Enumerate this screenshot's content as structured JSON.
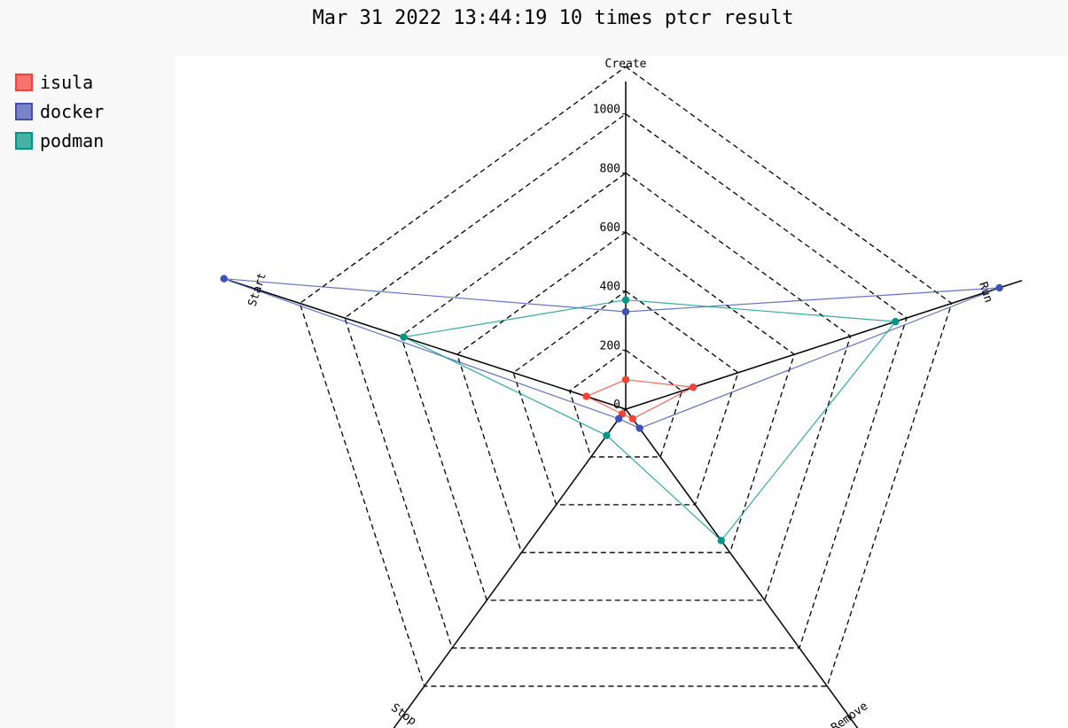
{
  "title": "Mar 31 2022 13:44:19 10 times ptcr result",
  "legend": [
    {
      "name": "isula",
      "color": "#f44336",
      "fill": "#f8736b"
    },
    {
      "name": "docker",
      "color": "#3f51b5",
      "fill": "#7a82cb"
    },
    {
      "name": "podman",
      "color": "#009688",
      "fill": "#44b3a6"
    }
  ],
  "chart_data": {
    "type": "radar",
    "title": "Mar 31 2022 13:44:19 10 times ptcr result",
    "axes": [
      "Create",
      "Run",
      "Remove",
      "Stop",
      "Start"
    ],
    "r_ticks": [
      "0",
      "200",
      "400",
      "600",
      "800",
      "1000"
    ],
    "rlim": [
      0,
      1080
    ],
    "grid": "dashed",
    "legend_position": "left",
    "series": [
      {
        "name": "isula",
        "values": [
          100,
          240,
          40,
          20,
          140
        ]
      },
      {
        "name": "docker",
        "values": [
          330,
          1330,
          80,
          40,
          1430
        ]
      },
      {
        "name": "podman",
        "values": [
          370,
          960,
          550,
          110,
          790
        ]
      }
    ]
  }
}
